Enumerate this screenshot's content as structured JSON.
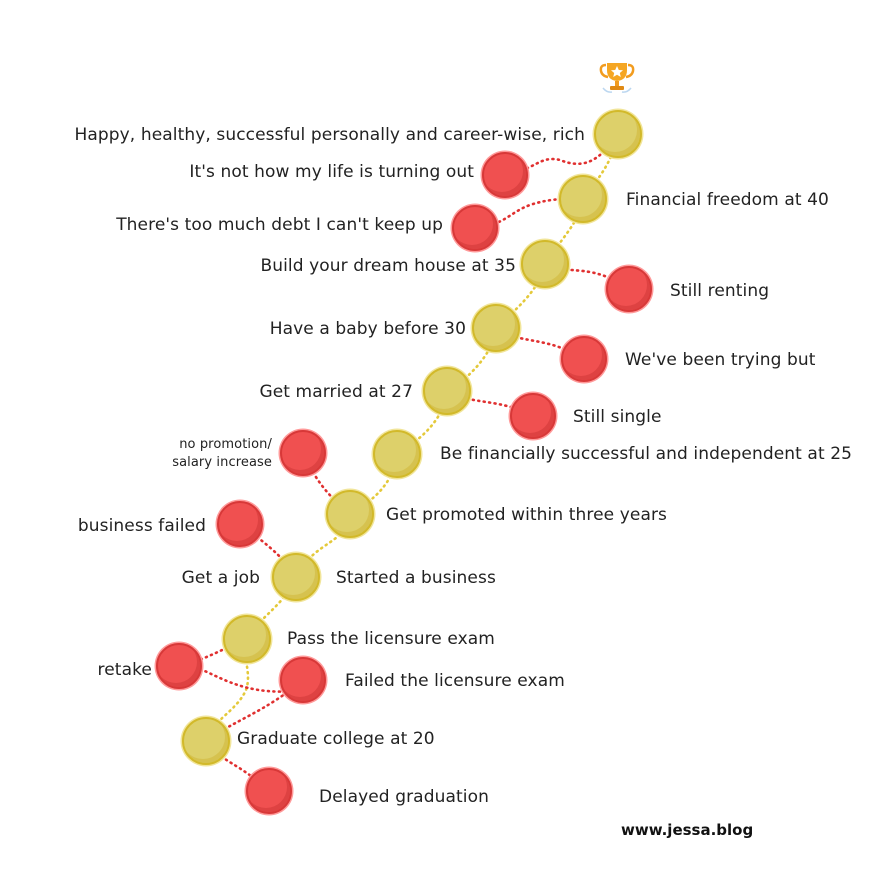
{
  "colors": {
    "success": "#ddd06a",
    "setback": "#f05050",
    "success_dots": "#e4c93a",
    "setback_dots": "#e03030"
  },
  "icons": {
    "goal": "trophy-icon"
  },
  "footer": "www.jessa.blog",
  "milestones": {
    "goal": "Happy, healthy, successful personally and career-wise, rich",
    "freedom": "Financial freedom at 40",
    "house": "Build your dream house at 35",
    "baby": "Have a baby before 30",
    "married": "Get married at 27",
    "independent": "Be financially successful and independent at 25",
    "promoted": "Get promoted within three years",
    "job": "Get a job",
    "business": "Started a business",
    "exam": "Pass the licensure exam",
    "graduate": "Graduate college at 20"
  },
  "setbacks": {
    "life": "It's not how my life is turning out",
    "debt": "There's too much debt I can't keep up",
    "renting": "Still renting",
    "trying": "We've been trying but",
    "single": "Still single",
    "promotion": "no promotion/ salary increase",
    "business_failed": "business failed",
    "retake": "retake",
    "failed_exam": "Failed the licensure exam",
    "delayed": "Delayed graduation"
  }
}
